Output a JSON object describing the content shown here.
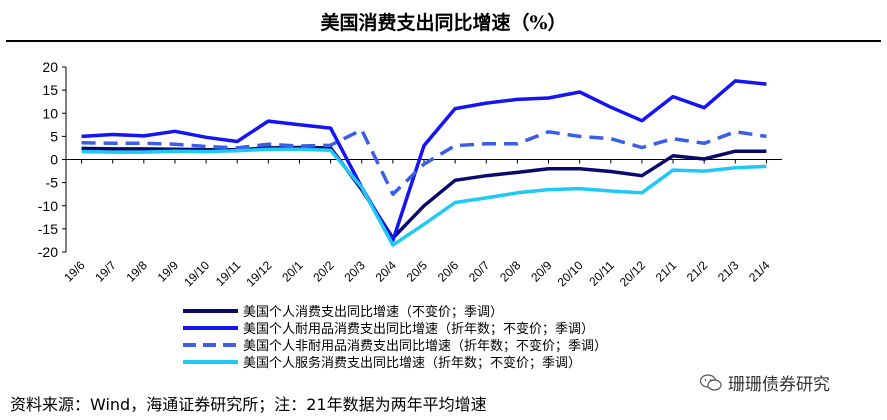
{
  "title": "美国消费支出同比增速（%）",
  "source": "资料来源：Wind，海通证券研究所；注：21年数据为两年平均增速",
  "watermark": "珊珊债券研究",
  "chart_data": {
    "type": "line",
    "x": [
      "19/6",
      "19/7",
      "19/8",
      "19/9",
      "19/10",
      "19/11",
      "19/12",
      "20/1",
      "20/2",
      "20/3",
      "20/4",
      "20/5",
      "20/6",
      "20/7",
      "20/8",
      "20/9",
      "20/10",
      "20/11",
      "20/12",
      "21/1",
      "21/2",
      "21/3",
      "21/4"
    ],
    "ylim": [
      -20,
      20
    ],
    "yticks": [
      20,
      15,
      10,
      5,
      0,
      -5,
      -10,
      -15,
      -20
    ],
    "grid": false,
    "legend_position": "bottom",
    "series": [
      {
        "name": "美国个人消费支出同比增速（不变价；季调）",
        "color": "#0a0a6e",
        "dash": "solid",
        "values": [
          2.4,
          2.3,
          2.3,
          2.2,
          2.1,
          2.1,
          2.5,
          2.6,
          2.5,
          -6.5,
          -17.0,
          -10.0,
          -4.5,
          -3.5,
          -2.8,
          -2.0,
          -2.0,
          -2.6,
          -3.5,
          0.8,
          0.1,
          1.8,
          1.8
        ]
      },
      {
        "name": "美国个人耐用品消费支出同比增速（折年数；不变价；季调）",
        "color": "#1414f5",
        "dash": "solid",
        "values": [
          5.0,
          5.4,
          5.1,
          6.1,
          4.8,
          3.9,
          8.3,
          7.5,
          6.8,
          -6.0,
          -17.5,
          3.0,
          11.0,
          12.2,
          13.0,
          13.3,
          14.6,
          11.3,
          8.4,
          13.6,
          11.2,
          17.0,
          16.3
        ]
      },
      {
        "name": "美国个人非耐用品消费支出同比增速（折年数；不变价；季调）",
        "color": "#3a5ee8",
        "dash": "dashed",
        "values": [
          3.6,
          3.5,
          3.5,
          3.3,
          2.8,
          2.5,
          3.3,
          2.9,
          3.1,
          6.4,
          -7.5,
          -1.0,
          3.0,
          3.4,
          3.4,
          6.0,
          5.0,
          4.5,
          2.6,
          4.5,
          3.5,
          6.0,
          5.0
        ]
      },
      {
        "name": "美国个人服务消费支出同比增速（折年数；不变价；季调）",
        "color": "#1fc8f5",
        "dash": "solid",
        "values": [
          1.7,
          1.6,
          1.6,
          1.8,
          1.7,
          1.9,
          2.2,
          2.2,
          2.0,
          -6.0,
          -18.5,
          -14.0,
          -9.3,
          -8.3,
          -7.2,
          -6.5,
          -6.3,
          -6.8,
          -7.2,
          -2.3,
          -2.5,
          -1.8,
          -1.5
        ]
      }
    ]
  }
}
